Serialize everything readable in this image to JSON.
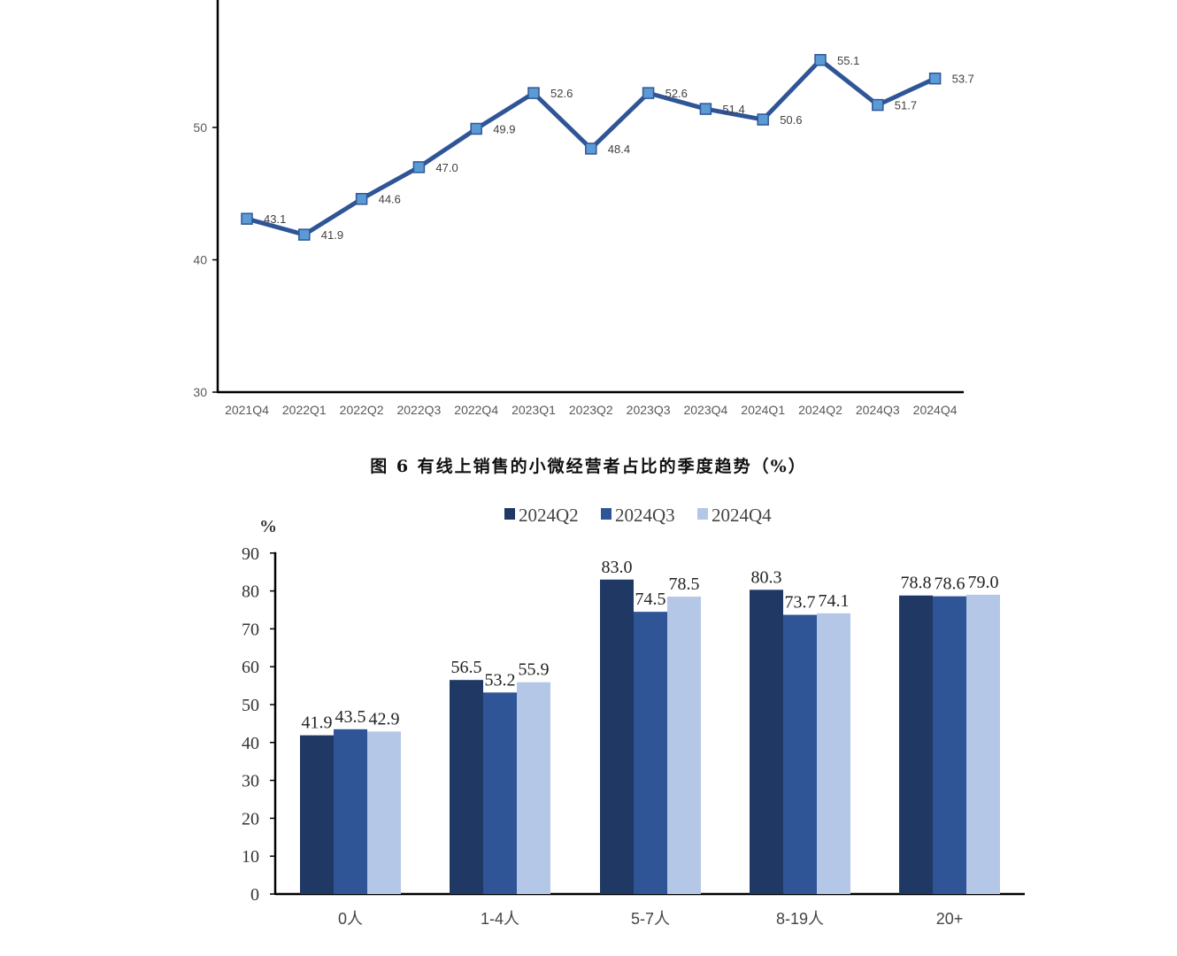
{
  "chart_data": [
    {
      "type": "line",
      "title": "",
      "xlabel": "",
      "ylabel": "",
      "ylim": [
        30,
        60
      ],
      "yticks": [
        30,
        40,
        50
      ],
      "grid": false,
      "categories": [
        "2021Q4",
        "2022Q1",
        "2022Q2",
        "2022Q3",
        "2022Q4",
        "2023Q1",
        "2023Q2",
        "2023Q3",
        "2023Q4",
        "2024Q1",
        "2024Q2",
        "2024Q3",
        "2024Q4"
      ],
      "series": [
        {
          "name": "",
          "color": "#2f5597",
          "marker_color": "#5b9bd5",
          "values": [
            43.1,
            41.9,
            44.6,
            47.0,
            49.9,
            52.6,
            48.4,
            52.6,
            51.4,
            50.6,
            55.1,
            51.7,
            53.7
          ],
          "labels": [
            "43.1",
            "41.9",
            "44.6",
            "47.0",
            "49.9",
            "52.6",
            "48.4",
            "52.6",
            "51.4",
            "50.6",
            "55.1",
            "51.7",
            "53.7"
          ]
        }
      ]
    },
    {
      "type": "bar",
      "title": "图 6 有线上销售的小微经营者占比的季度趋势（%）",
      "xlabel": "",
      "ylabel": "%",
      "ylim": [
        0,
        90
      ],
      "yticks": [
        0,
        10,
        20,
        30,
        40,
        50,
        60,
        70,
        80,
        90
      ],
      "grid": false,
      "legend_position": "top",
      "categories": [
        "0人",
        "1-4人",
        "5-7人",
        "8-19人",
        "20+"
      ],
      "series": [
        {
          "name": "2024Q2",
          "color": "#1f3864",
          "values": [
            41.9,
            56.5,
            83.0,
            80.3,
            78.8
          ],
          "labels": [
            "41.9",
            "56.5",
            "83.0",
            "80.3",
            "78.8"
          ]
        },
        {
          "name": "2024Q3",
          "color": "#2f5597",
          "values": [
            43.5,
            53.2,
            74.5,
            73.7,
            78.6
          ],
          "labels": [
            "43.5",
            "53.2",
            "74.5",
            "73.7",
            "78.6"
          ]
        },
        {
          "name": "2024Q4",
          "color": "#b4c7e7",
          "values": [
            42.9,
            55.9,
            78.5,
            74.1,
            79.0
          ],
          "labels": [
            "42.9",
            "55.9",
            "78.5",
            "74.1",
            "79.0"
          ]
        }
      ]
    }
  ],
  "caption": "图 6 有线上销售的小微经营者占比的季度趋势（%）"
}
